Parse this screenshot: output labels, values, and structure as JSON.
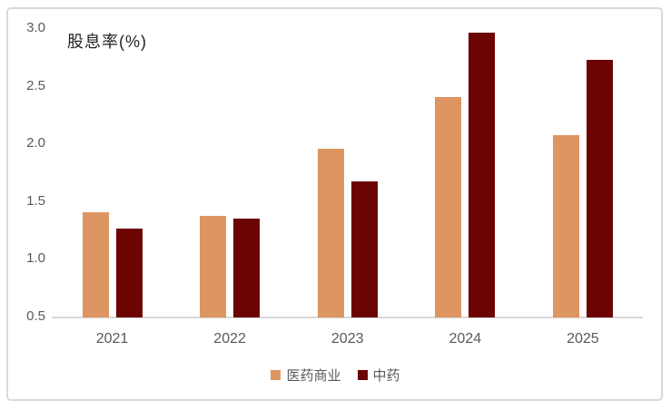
{
  "chart": {
    "title": "股息率(%)"
  },
  "chart_data": {
    "type": "bar",
    "title": "股息率(%)",
    "xlabel": "",
    "ylabel": "股息率(%)",
    "categories": [
      "2021",
      "2022",
      "2023",
      "2024",
      "2025"
    ],
    "series": [
      {
        "name": "医药商业",
        "color": "#DD9561",
        "values": [
          1.41,
          1.38,
          1.96,
          2.41,
          2.08
        ]
      },
      {
        "name": "中药",
        "color": "#6B0403",
        "values": [
          1.27,
          1.36,
          1.68,
          2.97,
          2.73
        ]
      }
    ],
    "ylim": [
      0.5,
      3.0
    ],
    "yticks": [
      0.5,
      1.0,
      1.5,
      2.0,
      2.5,
      3.0
    ],
    "ytick_labels": [
      "0.5",
      "1.0",
      "1.5",
      "2.0",
      "2.5",
      "3.0"
    ],
    "grid": false,
    "legend_position": "bottom",
    "axis_color": "#D9D9D9",
    "tick_text_color": "#595959",
    "title_color": "#1f1f1f"
  }
}
